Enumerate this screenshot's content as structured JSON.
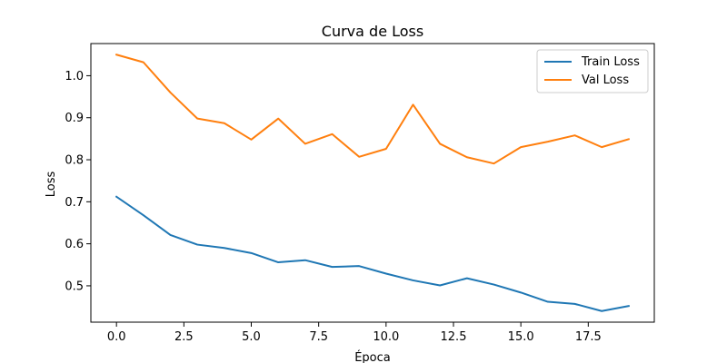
{
  "chart_data": {
    "type": "line",
    "title": "Curva de Loss",
    "xlabel": "Época",
    "ylabel": "Loss",
    "x": [
      0,
      1,
      2,
      3,
      4,
      5,
      6,
      7,
      8,
      9,
      10,
      11,
      12,
      13,
      14,
      15,
      16,
      17,
      18,
      19
    ],
    "xlim": [
      -0.95,
      19.95
    ],
    "ylim": [
      0.4135,
      1.0765
    ],
    "xticks": [
      0,
      2.5,
      5,
      7.5,
      10,
      12.5,
      15,
      17.5
    ],
    "xtick_labels": [
      "0.0",
      "2.5",
      "5.0",
      "7.5",
      "10.0",
      "12.5",
      "15.0",
      "17.5"
    ],
    "yticks": [
      0.5,
      0.6,
      0.7,
      0.8,
      0.9,
      1.0
    ],
    "ytick_labels": [
      "0.5",
      "0.6",
      "0.7",
      "0.8",
      "0.9",
      "1.0"
    ],
    "grid": false,
    "legend_position": "top-right",
    "series": [
      {
        "name": "Train Loss",
        "color": "#1f77b4",
        "values": [
          0.712,
          0.668,
          0.621,
          0.598,
          0.59,
          0.578,
          0.556,
          0.561,
          0.545,
          0.547,
          0.529,
          0.513,
          0.501,
          0.518,
          0.503,
          0.484,
          0.462,
          0.457,
          0.44,
          0.452
        ]
      },
      {
        "name": "Val Loss",
        "color": "#ff7f0e",
        "values": [
          1.05,
          1.032,
          0.96,
          0.898,
          0.887,
          0.848,
          0.898,
          0.838,
          0.861,
          0.807,
          0.826,
          0.931,
          0.838,
          0.806,
          0.791,
          0.83,
          0.843,
          0.858,
          0.83,
          0.849
        ]
      }
    ]
  }
}
